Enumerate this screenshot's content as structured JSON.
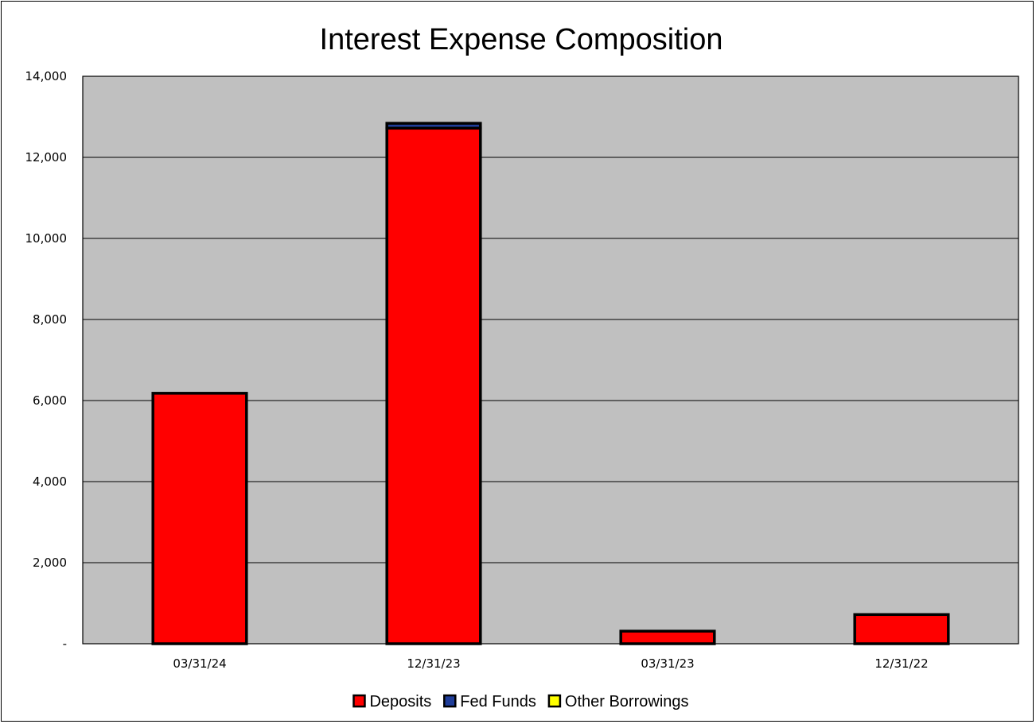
{
  "chart_data": {
    "type": "bar",
    "stacked": true,
    "title": "Interest Expense Composition",
    "xlabel": "",
    "ylabel": "",
    "categories": [
      "03/31/24",
      "12/31/23",
      "03/31/23",
      "12/31/22"
    ],
    "series": [
      {
        "name": "Deposits",
        "color": "#ff0000",
        "values": [
          6180,
          12720,
          310,
          720
        ]
      },
      {
        "name": "Fed Funds",
        "color": "#1f3d99",
        "values": [
          0,
          120,
          0,
          0
        ]
      },
      {
        "name": "Other Borrowings",
        "color": "#ffff00",
        "values": [
          0,
          0,
          0,
          0
        ]
      }
    ],
    "ylim": [
      0,
      14000
    ],
    "yticks": [
      0,
      2000,
      4000,
      6000,
      8000,
      10000,
      12000,
      14000
    ],
    "ytick_labels": [
      "-",
      "2,000",
      "4,000",
      "6,000",
      "8,000",
      "10,000",
      "12,000",
      "14,000"
    ],
    "grid": true,
    "plot_background": "#c0c0c0",
    "legend_position": "bottom"
  }
}
